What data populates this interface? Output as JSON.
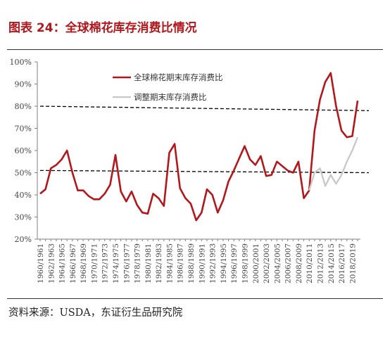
{
  "header": {
    "title": "图表 24：全球棉花库存消费比情况"
  },
  "footer": {
    "source": "资料来源：USDA，东证衍生品研究院"
  },
  "chart_data": {
    "type": "line",
    "title": "",
    "xlabel": "",
    "ylabel": "",
    "ylim": [
      0.2,
      1.0
    ],
    "y_ticks": [
      "20%",
      "30%",
      "40%",
      "50%",
      "60%",
      "70%",
      "80%",
      "90%",
      "100%"
    ],
    "x_tick_labels": [
      "1960/1961",
      "1962/1963",
      "1964/1965",
      "1966/1967",
      "1968/1969",
      "1970/1971",
      "1972/1973",
      "1974/1975",
      "1976/1977",
      "1978/1979",
      "1980/1981",
      "1982/1983",
      "1984/1985",
      "1986/1987",
      "1988/1989",
      "1990/1991",
      "1992/1993",
      "1994/1995",
      "1996/1997",
      "1998/1999",
      "2000/2001",
      "2002/2003",
      "2004/2005",
      "2006/2007",
      "2008/2009",
      "2010/2011",
      "2012/2013",
      "2014/2015",
      "2016/2017",
      "2018/2019"
    ],
    "x": [
      "1960/1961",
      "1961/1962",
      "1962/1963",
      "1963/1964",
      "1964/1965",
      "1965/1966",
      "1966/1967",
      "1967/1968",
      "1968/1969",
      "1969/1970",
      "1970/1971",
      "1971/1972",
      "1972/1973",
      "1973/1974",
      "1974/1975",
      "1975/1976",
      "1976/1977",
      "1977/1978",
      "1978/1979",
      "1979/1980",
      "1980/1981",
      "1981/1982",
      "1982/1983",
      "1983/1984",
      "1984/1985",
      "1985/1986",
      "1986/1987",
      "1987/1988",
      "1988/1989",
      "1989/1990",
      "1990/1991",
      "1991/1992",
      "1992/1993",
      "1993/1994",
      "1994/1995",
      "1995/1996",
      "1996/1997",
      "1997/1998",
      "1998/1999",
      "1999/2000",
      "2000/2001",
      "2001/2002",
      "2002/2003",
      "2003/2004",
      "2004/2005",
      "2005/2006",
      "2006/2007",
      "2007/2008",
      "2008/2009",
      "2009/2010",
      "2010/2011",
      "2011/2012",
      "2012/2013",
      "2013/2014",
      "2014/2015",
      "2015/2016",
      "2016/2017",
      "2017/2018",
      "2018/2019",
      "2019/2020"
    ],
    "series": [
      {
        "name": "全球棉花期末库存消费比",
        "color": "#b3161b",
        "values": [
          0.405,
          0.425,
          0.52,
          0.535,
          0.56,
          0.6,
          0.5,
          0.42,
          0.42,
          0.395,
          0.38,
          0.38,
          0.405,
          0.445,
          0.58,
          0.415,
          0.37,
          0.415,
          0.355,
          0.32,
          0.315,
          0.405,
          0.385,
          0.35,
          0.59,
          0.63,
          0.43,
          0.385,
          0.36,
          0.285,
          0.32,
          0.425,
          0.4,
          0.32,
          0.375,
          0.46,
          0.51,
          0.565,
          0.62,
          0.56,
          0.535,
          0.575,
          0.485,
          0.49,
          0.55,
          0.53,
          0.51,
          0.5,
          0.55,
          0.385,
          0.42,
          0.69,
          0.83,
          0.91,
          0.95,
          0.8,
          0.69,
          0.66,
          0.665,
          0.825
        ]
      },
      {
        "name": "调整期末库存消费比",
        "color": "#c8c8c8",
        "values": [
          null,
          null,
          null,
          null,
          null,
          null,
          null,
          null,
          null,
          null,
          null,
          null,
          null,
          null,
          null,
          null,
          null,
          null,
          null,
          null,
          null,
          null,
          null,
          null,
          null,
          null,
          null,
          null,
          null,
          null,
          null,
          null,
          null,
          null,
          null,
          null,
          null,
          null,
          null,
          null,
          null,
          null,
          null,
          null,
          null,
          null,
          null,
          null,
          null,
          null,
          0.42,
          0.5,
          0.52,
          0.44,
          0.49,
          0.45,
          0.49,
          0.55,
          0.6,
          0.66
        ]
      }
    ],
    "reference_lines": [
      {
        "style": "dashed",
        "color": "#000000",
        "from": 0.8,
        "to": 0.78
      },
      {
        "style": "dashed",
        "color": "#000000",
        "from": 0.51,
        "to": 0.5
      }
    ],
    "legend": {
      "placement": "top-right"
    },
    "grid": false
  }
}
